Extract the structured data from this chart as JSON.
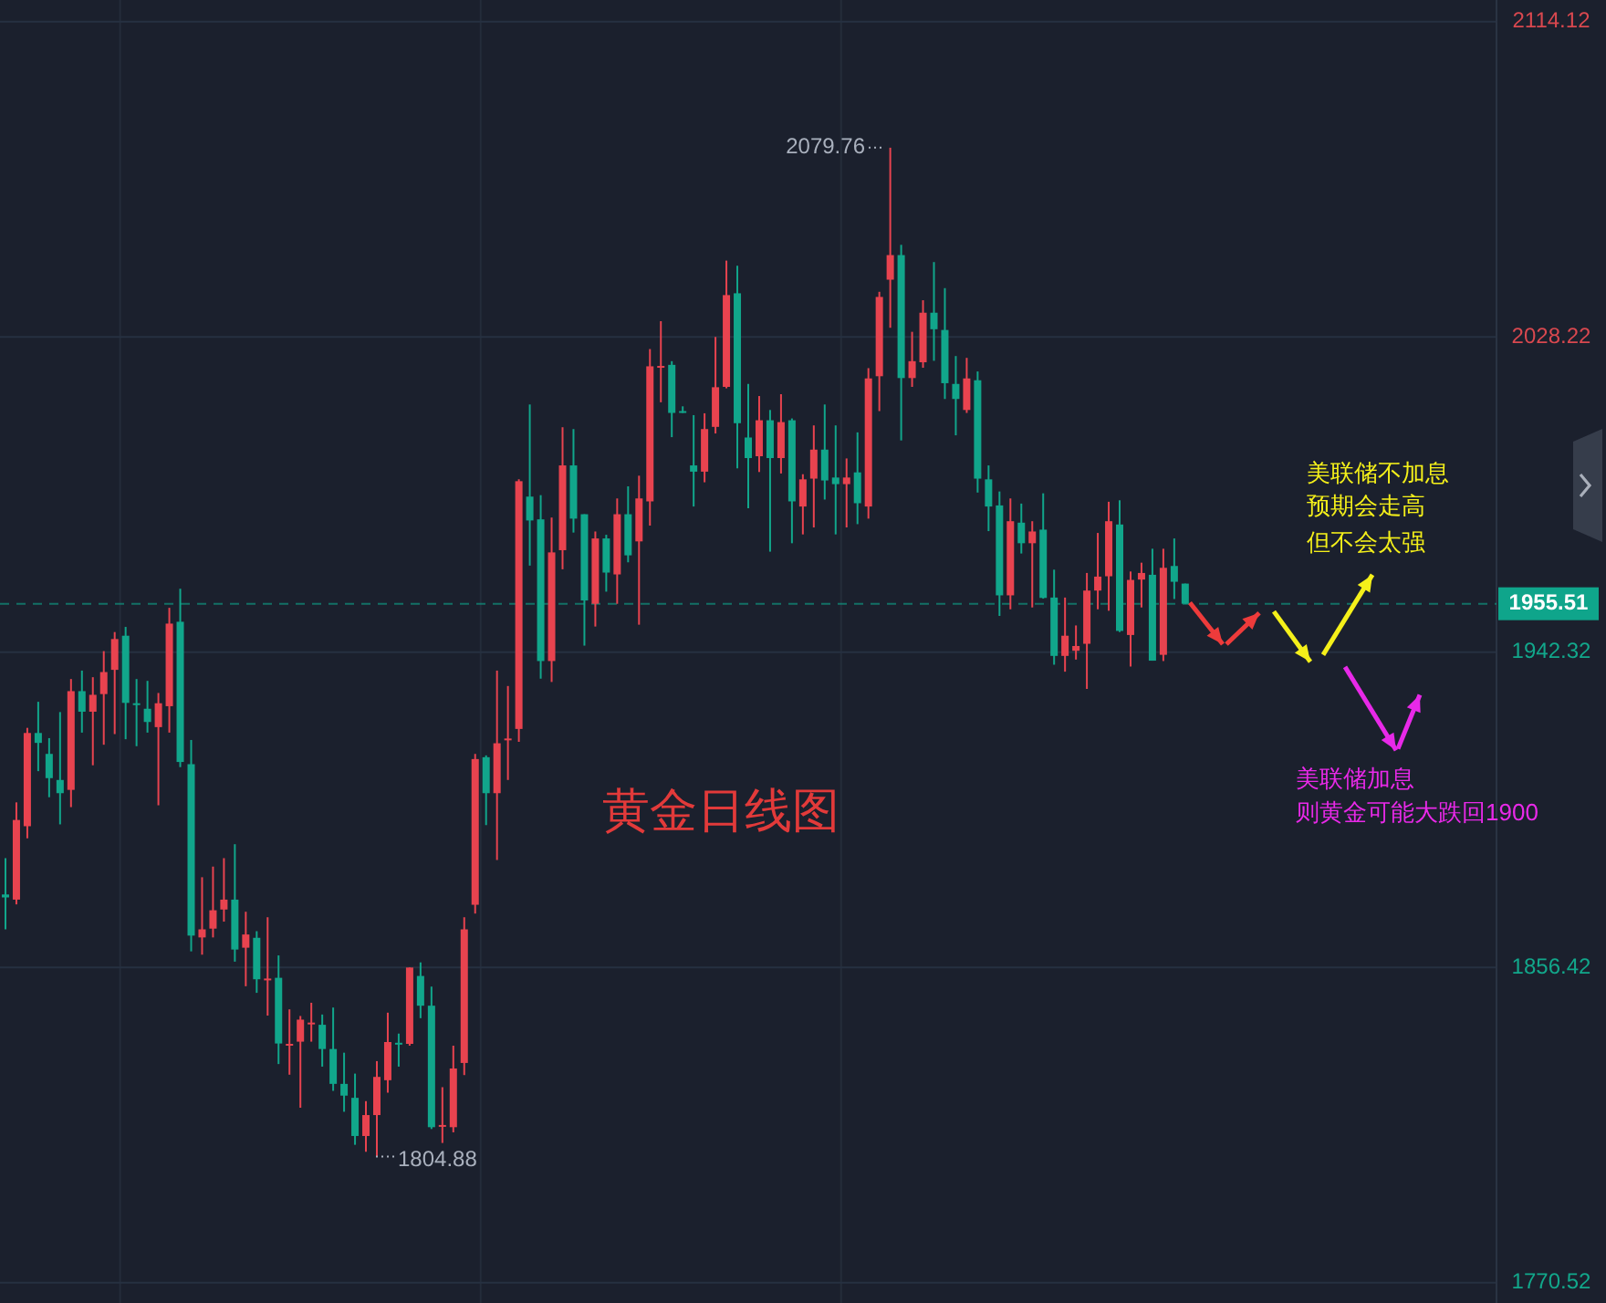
{
  "chart_data": {
    "type": "candlestick",
    "title": "黄金日线图",
    "categories": [
      null,
      null,
      null,
      null,
      null,
      null,
      null,
      null,
      null,
      null,
      null,
      null,
      null,
      null,
      null,
      null,
      null,
      null,
      null,
      null,
      null,
      null,
      null,
      null,
      null,
      null,
      null,
      null,
      null,
      null,
      null,
      null,
      null,
      null,
      null,
      null,
      null,
      null,
      null,
      null,
      null,
      null,
      null,
      null,
      null,
      null,
      null,
      null,
      null,
      null,
      null,
      null,
      null,
      null,
      null,
      null,
      null,
      null,
      null,
      null,
      null,
      null,
      null,
      null,
      null,
      null,
      null,
      null,
      null,
      null,
      null,
      null,
      null,
      null,
      null,
      null,
      null,
      null,
      null,
      null,
      null,
      null,
      null,
      null,
      null,
      null,
      null,
      null,
      null,
      null,
      null,
      null,
      null,
      null,
      null,
      null,
      null,
      null,
      null,
      null,
      null,
      null,
      null,
      null,
      null,
      null,
      null,
      null,
      null,
      null,
      null,
      null,
      null,
      null,
      null,
      null,
      null,
      null,
      null,
      null,
      null,
      null,
      null,
      null,
      null,
      null,
      null,
      null,
      null,
      null,
      null,
      null,
      null,
      null,
      null,
      null,
      null
    ],
    "ohlc": [
      [
        1876.3,
        1886.2,
        1866.8,
        1875.5
      ],
      [
        1874.9,
        1901.4,
        1873.6,
        1896.6
      ],
      [
        1894.9,
        1921.7,
        1891.6,
        1920.3
      ],
      [
        1920.3,
        1928.8,
        1909.9,
        1917.6
      ],
      [
        1914.6,
        1918.9,
        1902.8,
        1908.0
      ],
      [
        1907.5,
        1926.0,
        1895.4,
        1903.9
      ],
      [
        1904.8,
        1935.0,
        1900.1,
        1931.7
      ],
      [
        1931.7,
        1937.3,
        1920.4,
        1926.1
      ],
      [
        1926.1,
        1935.5,
        1911.5,
        1930.7
      ],
      [
        1930.9,
        1942.6,
        1917.1,
        1936.9
      ],
      [
        1937.5,
        1947.8,
        1920.0,
        1945.9
      ],
      [
        1946.8,
        1949.2,
        1918.6,
        1928.5
      ],
      [
        1928.4,
        1935.0,
        1916.7,
        1928.0
      ],
      [
        1926.9,
        1934.5,
        1920.4,
        1923.3
      ],
      [
        1921.9,
        1931.2,
        1900.6,
        1928.4
      ],
      [
        1927.6,
        1954.4,
        1920.4,
        1950.1
      ],
      [
        1950.6,
        1959.6,
        1911.0,
        1912.4
      ],
      [
        1911.8,
        1918.4,
        1860.8,
        1865.1
      ],
      [
        1864.6,
        1881.0,
        1859.9,
        1866.8
      ],
      [
        1867.0,
        1883.9,
        1864.6,
        1872.0
      ],
      [
        1872.2,
        1886.2,
        1868.9,
        1874.9
      ],
      [
        1874.9,
        1890.0,
        1858.0,
        1861.3
      ],
      [
        1861.8,
        1871.6,
        1851.3,
        1865.4
      ],
      [
        1864.5,
        1866.3,
        1849.5,
        1853.2
      ],
      [
        1853.0,
        1870.1,
        1843.3,
        1853.4
      ],
      [
        1853.6,
        1859.7,
        1830.1,
        1835.7
      ],
      [
        1835.2,
        1845.0,
        1827.2,
        1835.6
      ],
      [
        1836.2,
        1843.2,
        1818.2,
        1842.2
      ],
      [
        1841.0,
        1846.8,
        1836.2,
        1841.4
      ],
      [
        1840.8,
        1843.6,
        1829.4,
        1834.2
      ],
      [
        1834.2,
        1845.5,
        1822.8,
        1824.7
      ],
      [
        1824.7,
        1833.2,
        1817.1,
        1821.5
      ],
      [
        1820.9,
        1827.5,
        1808.1,
        1810.5
      ],
      [
        1810.5,
        1820.0,
        1806.2,
        1816.2
      ],
      [
        1816.2,
        1830.9,
        1804.88,
        1826.6
      ],
      [
        1825.7,
        1844.1,
        1822.3,
        1836.1
      ],
      [
        1835.9,
        1838.4,
        1829.4,
        1835.4
      ],
      [
        1835.6,
        1856.4,
        1835.1,
        1856.4
      ],
      [
        1854.1,
        1857.8,
        1842.6,
        1846.0
      ],
      [
        1846.0,
        1851.2,
        1812.4,
        1812.9
      ],
      [
        1813.1,
        1823.8,
        1808.6,
        1813.5
      ],
      [
        1812.9,
        1835.1,
        1811.5,
        1828.9
      ],
      [
        1830.4,
        1870.1,
        1827.1,
        1866.8
      ],
      [
        1873.5,
        1914.6,
        1871.1,
        1913.2
      ],
      [
        1913.7,
        1914.2,
        1895.2,
        1903.9
      ],
      [
        1903.9,
        1937.3,
        1885.7,
        1917.5
      ],
      [
        1918.4,
        1933.1,
        1907.5,
        1918.8
      ],
      [
        1921.4,
        1989.4,
        1917.9,
        1988.9
      ],
      [
        1984.7,
        2009.8,
        1965.9,
        1978.2
      ],
      [
        1978.5,
        1985.1,
        1935.1,
        1939.9
      ],
      [
        1939.9,
        1979.0,
        1934.2,
        1969.5
      ],
      [
        1970.1,
        2003.6,
        1964.9,
        1993.2
      ],
      [
        1993.2,
        2003.1,
        1974.9,
        1978.7
      ],
      [
        1979.9,
        1979.9,
        1944.1,
        1956.4
      ],
      [
        1955.5,
        1975.2,
        1949.3,
        1973.3
      ],
      [
        1973.3,
        1974.3,
        1958.8,
        1964.0
      ],
      [
        1963.5,
        1984.2,
        1955.5,
        1979.9
      ],
      [
        1979.9,
        1987.5,
        1966.8,
        1968.7
      ],
      [
        1972.5,
        1990.4,
        1949.8,
        1984.2
      ],
      [
        1983.4,
        2024.9,
        1976.8,
        2020.2
      ],
      [
        2019.9,
        2032.5,
        2010.4,
        2020.3
      ],
      [
        2020.6,
        2021.6,
        2000.9,
        2007.5
      ],
      [
        2008.0,
        2009.3,
        2007.5,
        2007.6
      ],
      [
        1993.2,
        2006.9,
        1982.0,
        1991.5
      ],
      [
        1991.5,
        2007.4,
        1988.6,
        2003.1
      ],
      [
        2003.7,
        2028.2,
        2001.9,
        2014.5
      ],
      [
        2014.6,
        2049.0,
        2014.2,
        2039.6
      ],
      [
        2040.1,
        2047.6,
        1992.4,
        2004.7
      ],
      [
        2000.8,
        2015.4,
        1981.5,
        1995.2
      ],
      [
        1995.7,
        2012.1,
        1991.4,
        2005.5
      ],
      [
        2005.5,
        2008.3,
        1969.7,
        1995.2
      ],
      [
        1995.2,
        2012.6,
        1991.0,
        2005.0
      ],
      [
        2005.5,
        2006.0,
        1972.0,
        1983.4
      ],
      [
        1982.0,
        1990.8,
        1974.4,
        1989.4
      ],
      [
        1989.6,
        2004.1,
        1976.3,
        1997.5
      ],
      [
        1997.5,
        2009.8,
        1983.9,
        1989.1
      ],
      [
        1989.9,
        2004.1,
        1974.4,
        1988.1
      ],
      [
        1988.1,
        1995.1,
        1976.3,
        1989.9
      ],
      [
        1991.3,
        2002.2,
        1977.2,
        1982.9
      ],
      [
        1982.0,
        2019.7,
        1978.7,
        2016.9
      ],
      [
        2017.5,
        2040.5,
        2008.0,
        2039.1
      ],
      [
        2043.8,
        2079.76,
        2030.7,
        2050.5
      ],
      [
        2050.5,
        2053.3,
        2000.0,
        2017.0
      ],
      [
        2017.0,
        2029.6,
        2014.6,
        2021.6
      ],
      [
        2021.3,
        2038.2,
        2019.8,
        2034.8
      ],
      [
        2034.8,
        2048.6,
        2021.7,
        2030.3
      ],
      [
        2030.1,
        2041.5,
        2011.3,
        2015.6
      ],
      [
        2015.4,
        2023.0,
        2001.4,
        2011.3
      ],
      [
        2008.3,
        2022.5,
        2007.5,
        2016.9
      ],
      [
        2016.4,
        2018.8,
        1985.8,
        1989.6
      ],
      [
        1989.4,
        1993.2,
        1975.3,
        1982.0
      ],
      [
        1982.3,
        1986.1,
        1952.2,
        1957.8
      ],
      [
        1957.8,
        1984.2,
        1954.0,
        1978.0
      ],
      [
        1977.6,
        1982.8,
        1969.2,
        1972.0
      ],
      [
        1972.0,
        1978.0,
        1954.5,
        1975.2
      ],
      [
        1975.7,
        1985.6,
        1956.9,
        1957.1
      ],
      [
        1957.2,
        1964.8,
        1938.9,
        1941.3
      ],
      [
        1941.3,
        1957.2,
        1937.0,
        1946.8
      ],
      [
        1942.7,
        1949.6,
        1940.3,
        1944.0
      ],
      [
        1944.6,
        1963.9,
        1932.3,
        1959.1
      ],
      [
        1959.1,
        1974.8,
        1954.0,
        1962.9
      ],
      [
        1963.0,
        1983.3,
        1953.6,
        1978.0
      ],
      [
        1977.1,
        1983.7,
        1947.8,
        1948.1
      ],
      [
        1947.0,
        1964.3,
        1938.4,
        1962.0
      ],
      [
        1962.1,
        1966.7,
        1954.5,
        1963.9
      ],
      [
        1963.4,
        1970.5,
        1940.0,
        1940.0
      ],
      [
        1941.6,
        1970.5,
        1939.9,
        1965.3
      ],
      [
        1965.8,
        1973.3,
        1956.8,
        1961.5
      ],
      [
        1961.0,
        1961.0,
        1955.51,
        1955.51
      ],
      null,
      null,
      null,
      null,
      null,
      null,
      null,
      null,
      null,
      null,
      null,
      null,
      null,
      null,
      null,
      null,
      null,
      null,
      null,
      null,
      null,
      null,
      null,
      null,
      null,
      null,
      null,
      null
    ],
    "colors": [
      "#11a68b",
      "#e8434f",
      "#e8434f",
      "#11a68b",
      "#11a68b",
      "#11a68b",
      "#e8434f",
      "#11a68b",
      "#e8434f",
      "#e8434f",
      "#e8434f",
      "#11a68b",
      "#11a68b",
      "#11a68b",
      "#e8434f",
      "#e8434f",
      "#11a68b",
      "#11a68b",
      "#e8434f",
      "#e8434f",
      "#e8434f",
      "#11a68b",
      "#e8434f",
      "#11a68b",
      "#e8434f",
      "#11a68b",
      "#e8434f",
      "#e8434f",
      "#e8434f",
      "#11a68b",
      "#11a68b",
      "#11a68b",
      "#11a68b",
      "#e8434f",
      "#e8434f",
      "#e8434f",
      "#11a68b",
      "#e8434f",
      "#11a68b",
      "#11a68b",
      "#e8434f",
      "#e8434f",
      "#e8434f",
      "#e8434f",
      "#11a68b",
      "#e8434f",
      "#e8434f",
      "#e8434f",
      "#11a68b",
      "#11a68b",
      "#e8434f",
      "#e8434f",
      "#11a68b",
      "#11a68b",
      "#e8434f",
      "#11a68b",
      "#e8434f",
      "#11a68b",
      "#e8434f",
      "#e8434f",
      "#e8434f",
      "#11a68b",
      "#11a68b",
      "#11a68b",
      "#e8434f",
      "#e8434f",
      "#e8434f",
      "#11a68b",
      "#11a68b",
      "#e8434f",
      "#11a68b",
      "#e8434f",
      "#11a68b",
      "#e8434f",
      "#e8434f",
      "#11a68b",
      "#11a68b",
      "#e8434f",
      "#11a68b",
      "#e8434f",
      "#e8434f",
      "#e8434f",
      "#11a68b",
      "#e8434f",
      "#e8434f",
      "#11a68b",
      "#11a68b",
      "#11a68b",
      "#e8434f",
      "#11a68b",
      "#11a68b",
      "#11a68b",
      "#e8434f",
      "#11a68b",
      "#e8434f",
      "#11a68b",
      "#11a68b",
      "#e8434f",
      "#e8434f",
      "#e8434f",
      "#e8434f",
      "#e8434f",
      "#11a68b",
      "#e8434f",
      "#e8434f",
      "#11a68b",
      "#e8434f",
      "#11a68b",
      "#11a68b",
      null,
      null,
      null,
      null,
      null,
      null,
      null,
      null,
      null,
      null,
      null,
      null,
      null,
      null,
      null,
      null,
      null,
      null,
      null,
      null,
      null,
      null,
      null,
      null,
      null,
      null,
      null,
      null
    ],
    "ylim": [
      1765,
      2120
    ],
    "yticks": [
      2114.12,
      2028.22,
      1942.32,
      1856.42,
      1770.52
    ],
    "grid": "y",
    "tick_labels": "y",
    "ref_lines": [
      {
        "axis": "y",
        "value": 1955.51,
        "label": "1955.51",
        "color": "#0fa58b",
        "line_style": "dashed"
      }
    ],
    "annotations": [
      "2079.76",
      "1804.88",
      "美联储不加息",
      "预期会走高",
      "但不会太强",
      "美联储加息",
      "则黄金可能大跌回1900"
    ]
  }
}
